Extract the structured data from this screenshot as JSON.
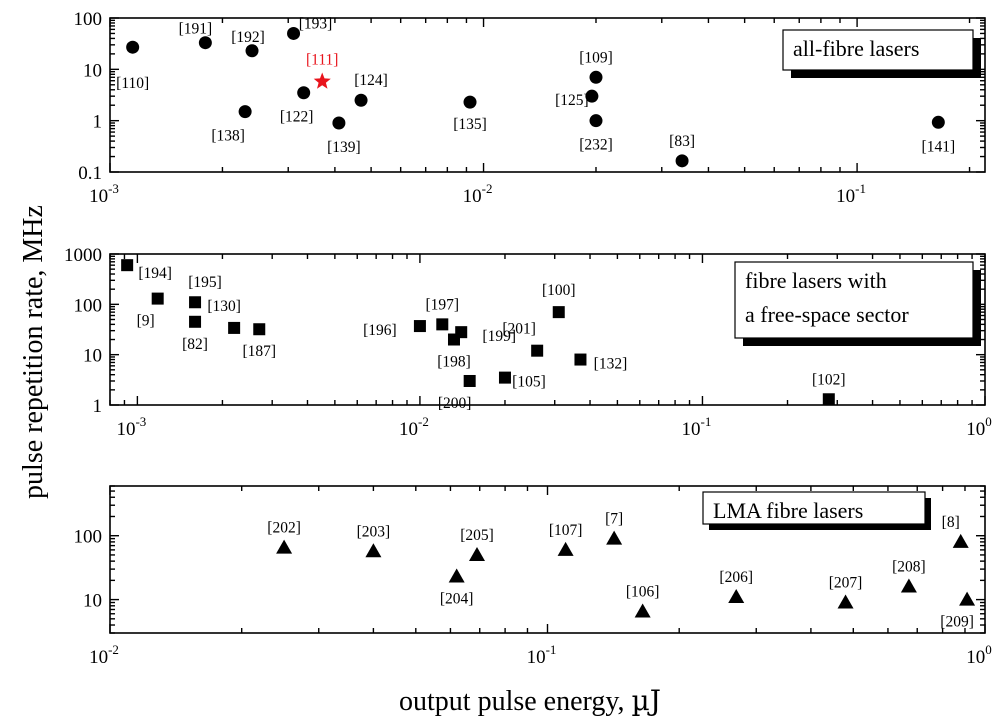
{
  "chart_data": [
    {
      "type": "scatter",
      "marker": "circle",
      "xscale": "log",
      "yscale": "log",
      "xlim": [
        0.001,
        0.22
      ],
      "ylim": [
        0.1,
        100
      ],
      "x_ticks": [
        {
          "v": 0.001,
          "m": "10",
          "e": "-3"
        },
        {
          "v": 0.01,
          "m": "10",
          "e": "-2"
        },
        {
          "v": 0.1,
          "m": "10",
          "e": "-1"
        }
      ],
      "y_ticks": [
        {
          "v": 100,
          "label": "100"
        },
        {
          "v": 10,
          "label": "10"
        },
        {
          "v": 1,
          "label": "1"
        },
        {
          "v": 0.1,
          "label": "0.1"
        }
      ],
      "legend": "all-fibre lasers",
      "points": [
        {
          "x": 0.00115,
          "y": 27,
          "label": "[110]"
        },
        {
          "x": 0.0018,
          "y": 33,
          "label": "[191]"
        },
        {
          "x": 0.0024,
          "y": 23,
          "label": "[192]"
        },
        {
          "x": 0.0031,
          "y": 50,
          "label": "[193]"
        },
        {
          "x": 0.0037,
          "y": 5.8,
          "label": "[111]",
          "color": "#e8141c",
          "marker": "star"
        },
        {
          "x": 0.0033,
          "y": 3.5,
          "label": "[122]"
        },
        {
          "x": 0.0047,
          "y": 2.5,
          "label": "[124]"
        },
        {
          "x": 0.0023,
          "y": 1.5,
          "label": "[138]"
        },
        {
          "x": 0.0041,
          "y": 0.9,
          "label": "[139]"
        },
        {
          "x": 0.0092,
          "y": 2.3,
          "label": "[135]"
        },
        {
          "x": 0.02,
          "y": 7,
          "label": "[109]"
        },
        {
          "x": 0.0195,
          "y": 3,
          "label": "[125]"
        },
        {
          "x": 0.02,
          "y": 1,
          "label": "[232]"
        },
        {
          "x": 0.034,
          "y": 0.165,
          "label": "[83]"
        },
        {
          "x": 0.165,
          "y": 0.93,
          "label": "[141]"
        }
      ]
    },
    {
      "type": "scatter",
      "marker": "square",
      "xscale": "log",
      "yscale": "log",
      "xlim": [
        0.0008,
        1
      ],
      "ylim": [
        1,
        1000
      ],
      "x_ticks": [
        {
          "v": 0.001,
          "m": "10",
          "e": "-3"
        },
        {
          "v": 0.01,
          "m": "10",
          "e": "-2"
        },
        {
          "v": 0.1,
          "m": "10",
          "e": "-1"
        },
        {
          "v": 1,
          "m": "10",
          "e": "0"
        }
      ],
      "y_ticks": [
        {
          "v": 1000,
          "label": "1000"
        },
        {
          "v": 100,
          "label": "100"
        },
        {
          "v": 10,
          "label": "10"
        },
        {
          "v": 1,
          "label": "1"
        }
      ],
      "legend": [
        "fibre lasers with",
        "a free-space sector"
      ],
      "points": [
        {
          "x": 0.00092,
          "y": 600,
          "label": "[194]"
        },
        {
          "x": 0.00118,
          "y": 130,
          "label": "[9]"
        },
        {
          "x": 0.0016,
          "y": 110,
          "label": "[195]"
        },
        {
          "x": 0.0016,
          "y": 45,
          "label": "[82]"
        },
        {
          "x": 0.0022,
          "y": 34,
          "label": "[130]"
        },
        {
          "x": 0.0027,
          "y": 32,
          "label": "[187]"
        },
        {
          "x": 0.01,
          "y": 37,
          "label": "[196]"
        },
        {
          "x": 0.012,
          "y": 40,
          "label": "[197]"
        },
        {
          "x": 0.0132,
          "y": 20,
          "label": "[198]"
        },
        {
          "x": 0.014,
          "y": 28,
          "label": "[199]"
        },
        {
          "x": 0.015,
          "y": 3,
          "label": "[200]"
        },
        {
          "x": 0.02,
          "y": 3.5,
          "label": "[105]"
        },
        {
          "x": 0.026,
          "y": 12,
          "label": "[201]"
        },
        {
          "x": 0.031,
          "y": 70,
          "label": "[100]"
        },
        {
          "x": 0.037,
          "y": 8,
          "label": "[132]"
        },
        {
          "x": 0.28,
          "y": 1.3,
          "label": "[102]"
        }
      ]
    },
    {
      "type": "scatter",
      "marker": "triangle",
      "xscale": "log",
      "yscale": "log",
      "xlim": [
        0.01,
        1
      ],
      "ylim": [
        3,
        600
      ],
      "x_ticks": [
        {
          "v": 0.01,
          "m": "10",
          "e": "-2"
        },
        {
          "v": 0.1,
          "m": "10",
          "e": "-1"
        },
        {
          "v": 1,
          "m": "10",
          "e": "0"
        }
      ],
      "y_ticks": [
        {
          "v": 100,
          "label": "100"
        },
        {
          "v": 10,
          "label": "10"
        }
      ],
      "legend": "LMA fibre lasers",
      "points": [
        {
          "x": 0.025,
          "y": 65,
          "label": "[202]"
        },
        {
          "x": 0.04,
          "y": 57,
          "label": "[203]"
        },
        {
          "x": 0.062,
          "y": 23,
          "label": "[204]"
        },
        {
          "x": 0.069,
          "y": 50,
          "label": "[205]"
        },
        {
          "x": 0.11,
          "y": 60,
          "label": "[107]"
        },
        {
          "x": 0.142,
          "y": 90,
          "label": "[7]"
        },
        {
          "x": 0.165,
          "y": 6.5,
          "label": "[106]"
        },
        {
          "x": 0.27,
          "y": 11,
          "label": "[206]"
        },
        {
          "x": 0.48,
          "y": 9,
          "label": "[207]"
        },
        {
          "x": 0.67,
          "y": 16,
          "label": "[208]"
        },
        {
          "x": 0.88,
          "y": 80,
          "label": "[8]"
        },
        {
          "x": 0.91,
          "y": 10,
          "label": "[209]"
        }
      ]
    }
  ],
  "ylabel": "pulse repetition rate, MHz",
  "xlabel_text": "output pulse energy, ",
  "xlabel_unit": "µJ"
}
